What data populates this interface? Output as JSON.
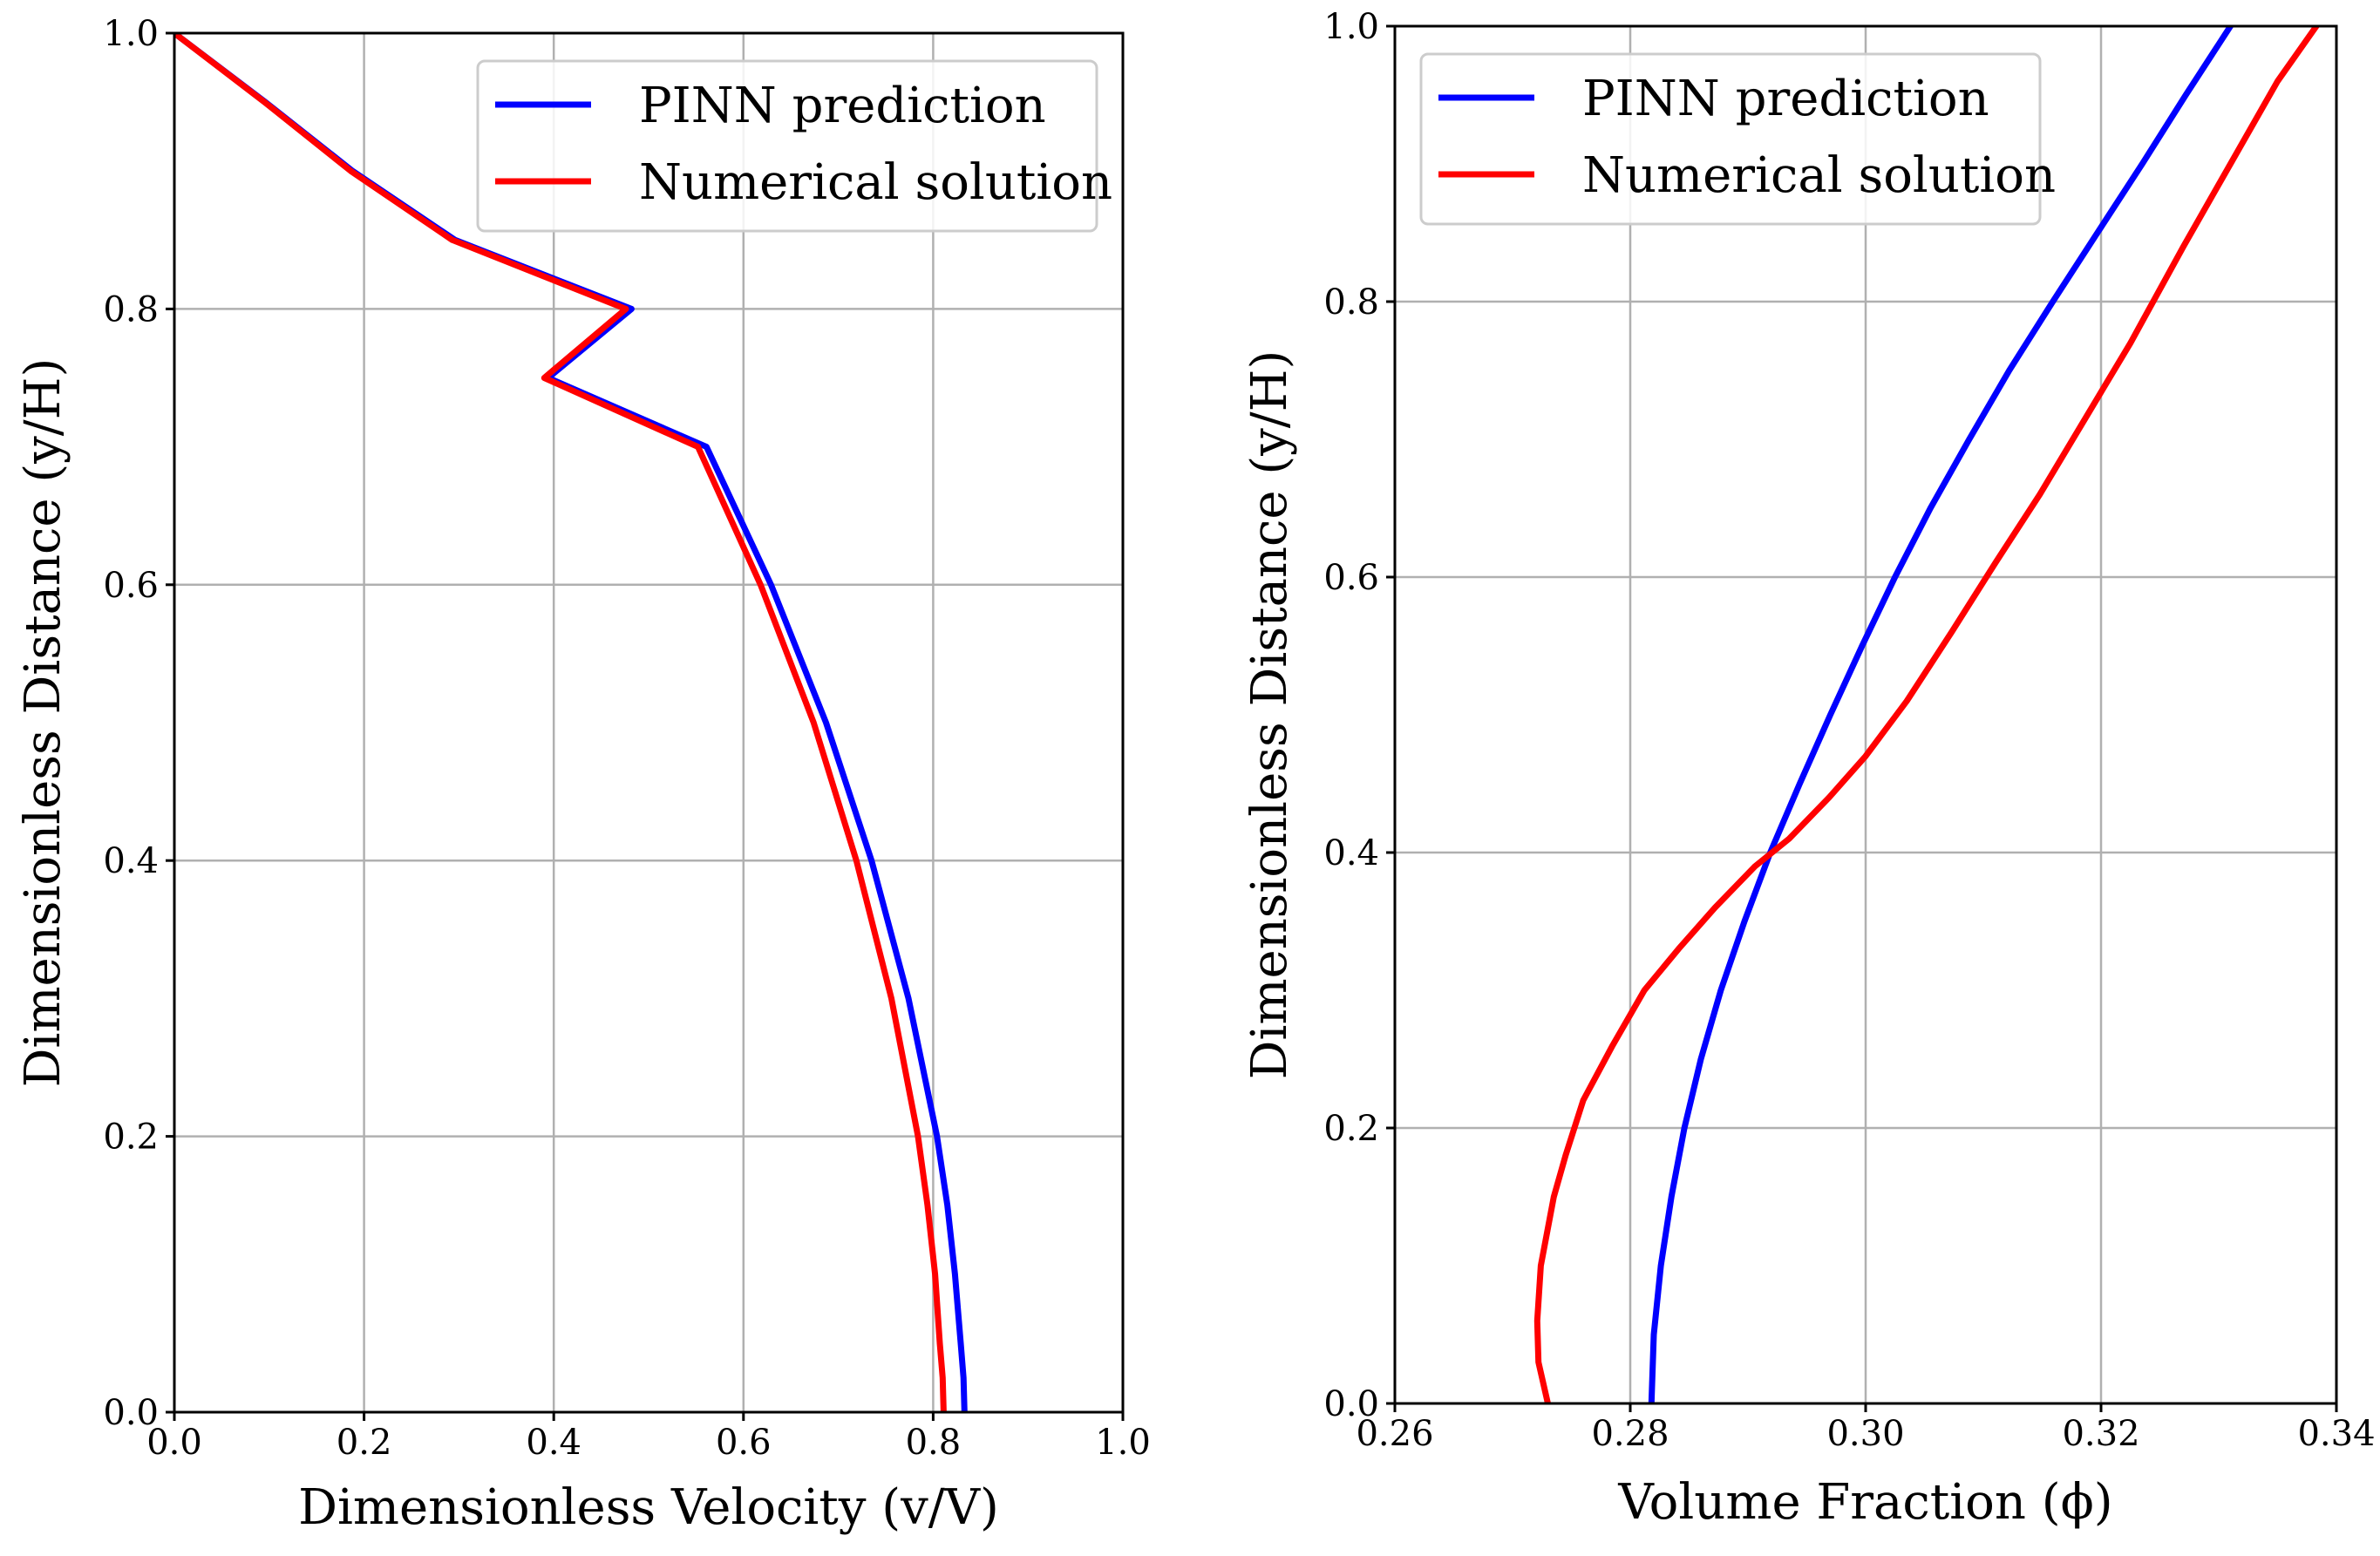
{
  "chart_data": [
    {
      "type": "line",
      "xlabel": "Dimensionless Velocity (v/V)",
      "ylabel": "Dimensionless Distance (y/H)",
      "xlim": [
        0.0,
        1.0
      ],
      "ylim": [
        0.0,
        1.0
      ],
      "xticks": [
        "0.0",
        "0.2",
        "0.4",
        "0.6",
        "0.8",
        "1.0"
      ],
      "yticks": [
        "0.0",
        "0.2",
        "0.4",
        "0.6",
        "0.8",
        "1.0"
      ],
      "grid": true,
      "legend_position": "top-right",
      "series": [
        {
          "name": "PINN prediction",
          "color": "#0000ff",
          "x": [
            0.833,
            0.832,
            0.829,
            0.823,
            0.815,
            0.804,
            0.774,
            0.735,
            0.687,
            0.629,
            0.561,
            0.482,
            0.394,
            0.296,
            0.188,
            0.096,
            0.0
          ],
          "y": [
            0.0,
            0.025,
            0.05,
            0.1,
            0.15,
            0.2,
            0.3,
            0.4,
            0.5,
            0.6,
            0.7,
            0.8,
            0.75,
            0.85,
            0.9,
            0.95,
            1.0
          ]
        },
        {
          "name": "Numerical solution",
          "color": "#ff0000",
          "x": [
            0.811,
            0.81,
            0.807,
            0.802,
            0.794,
            0.784,
            0.756,
            0.719,
            0.674,
            0.618,
            0.552,
            0.476,
            0.39,
            0.293,
            0.186,
            0.095,
            0.0
          ],
          "y": [
            0.0,
            0.025,
            0.05,
            0.1,
            0.15,
            0.2,
            0.3,
            0.4,
            0.5,
            0.6,
            0.7,
            0.8,
            0.75,
            0.85,
            0.9,
            0.95,
            1.0
          ]
        }
      ]
    },
    {
      "type": "line",
      "xlabel": "Volume Fraction (ϕ)",
      "ylabel": "Dimensionless Distance (y/H)",
      "xlim": [
        0.26,
        0.34
      ],
      "ylim": [
        0.0,
        1.0
      ],
      "xticks": [
        "0.26",
        "0.28",
        "0.30",
        "0.32",
        "0.34"
      ],
      "yticks": [
        "0.0",
        "0.2",
        "0.4",
        "0.6",
        "0.8",
        "1.0"
      ],
      "grid": true,
      "legend_position": "top-left",
      "series": [
        {
          "name": "PINN prediction",
          "color": "#0000ff",
          "x": [
            0.2818,
            0.282,
            0.2826,
            0.2835,
            0.2846,
            0.286,
            0.2877,
            0.2897,
            0.2919,
            0.2944,
            0.297,
            0.2997,
            0.3025,
            0.3055,
            0.3088,
            0.3122,
            0.3159,
            0.3197,
            0.3235,
            0.3272,
            0.331
          ],
          "y": [
            0.0,
            0.05,
            0.1,
            0.15,
            0.2,
            0.25,
            0.3,
            0.35,
            0.4,
            0.45,
            0.5,
            0.55,
            0.6,
            0.65,
            0.7,
            0.75,
            0.8,
            0.85,
            0.9,
            0.95,
            1.0
          ]
        },
        {
          "name": "Numerical solution",
          "color": "#ff0000",
          "x": [
            0.273,
            0.2722,
            0.2721,
            0.2724,
            0.2735,
            0.2745,
            0.276,
            0.2785,
            0.2812,
            0.2841,
            0.2872,
            0.2906,
            0.2935,
            0.2969,
            0.3,
            0.3035,
            0.3073,
            0.311,
            0.3148,
            0.319,
            0.3225,
            0.327,
            0.331,
            0.335,
            0.3383
          ],
          "y": [
            0.0,
            0.03,
            0.06,
            0.1,
            0.15,
            0.18,
            0.22,
            0.26,
            0.3,
            0.33,
            0.36,
            0.39,
            0.41,
            0.44,
            0.47,
            0.51,
            0.56,
            0.61,
            0.66,
            0.72,
            0.77,
            0.84,
            0.9,
            0.96,
            1.0
          ]
        }
      ]
    }
  ]
}
